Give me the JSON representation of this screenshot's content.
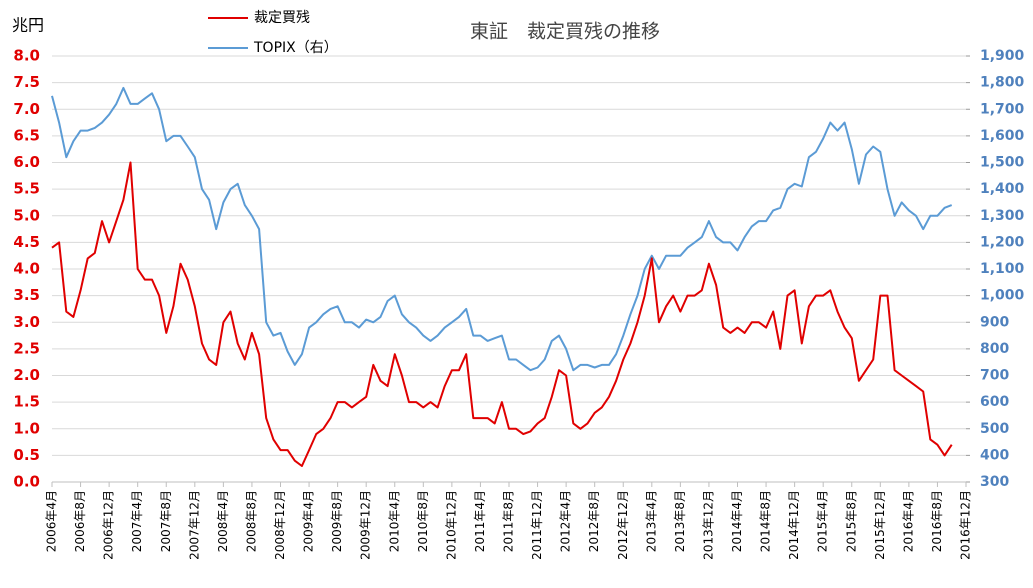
{
  "chart_data": {
    "type": "line",
    "title": "東証　裁定買残の推移",
    "ylabel": "兆円",
    "categories": [
      "2006年4月",
      null,
      null,
      null,
      "2006年8月",
      null,
      null,
      null,
      "2006年12月",
      null,
      null,
      null,
      "2007年4月",
      null,
      null,
      null,
      "2007年8月",
      null,
      null,
      null,
      "2007年12月",
      null,
      null,
      null,
      "2008年4月",
      null,
      null,
      null,
      "2008年8月",
      null,
      null,
      null,
      "2008年12月",
      null,
      null,
      null,
      "2009年4月",
      null,
      null,
      null,
      "2009年8月",
      null,
      null,
      null,
      "2009年12月",
      null,
      null,
      null,
      "2010年4月",
      null,
      null,
      null,
      "2010年8月",
      null,
      null,
      null,
      "2010年12月",
      null,
      null,
      null,
      "2011年4月",
      null,
      null,
      null,
      "2011年8月",
      null,
      null,
      null,
      "2011年12月",
      null,
      null,
      null,
      "2012年4月",
      null,
      null,
      null,
      "2012年8月",
      null,
      null,
      null,
      "2012年12月",
      null,
      null,
      null,
      "2013年4月",
      null,
      null,
      null,
      "2013年8月",
      null,
      null,
      null,
      "2013年12月",
      null,
      null,
      null,
      "2014年4月",
      null,
      null,
      null,
      "2014年8月",
      null,
      null,
      null,
      "2014年12月",
      null,
      null,
      null,
      "2015年4月",
      null,
      null,
      null,
      "2015年8月",
      null,
      null,
      null,
      "2015年12月",
      null,
      null,
      null,
      "2016年4月",
      null,
      null,
      null,
      "2016年8月",
      null,
      null,
      null,
      "2016年12月"
    ],
    "series": [
      {
        "name": "裁定買残",
        "color": "#e00000",
        "axis": "y",
        "values": [
          4.4,
          4.5,
          3.2,
          3.1,
          3.6,
          4.2,
          4.3,
          4.9,
          4.5,
          4.9,
          5.3,
          6.0,
          4.0,
          3.8,
          3.8,
          3.5,
          2.8,
          3.3,
          4.1,
          3.8,
          3.3,
          2.6,
          2.3,
          2.2,
          3.0,
          3.2,
          2.6,
          2.3,
          2.8,
          2.4,
          1.2,
          0.8,
          0.6,
          0.6,
          0.4,
          0.3,
          0.6,
          0.9,
          1.0,
          1.2,
          1.5,
          1.5,
          1.4,
          1.5,
          1.6,
          2.2,
          1.9,
          1.8,
          2.4,
          2.0,
          1.5,
          1.5,
          1.4,
          1.5,
          1.4,
          1.8,
          2.1,
          2.1,
          2.4,
          1.2,
          1.2,
          1.2,
          1.1,
          1.5,
          1.0,
          1.0,
          0.9,
          0.95,
          1.1,
          1.2,
          1.6,
          2.1,
          2.0,
          1.1,
          1.0,
          1.1,
          1.3,
          1.4,
          1.6,
          1.9,
          2.3,
          2.6,
          3.0,
          3.5,
          4.2,
          3.0,
          3.3,
          3.5,
          3.2,
          3.5,
          3.5,
          3.6,
          4.1,
          3.7,
          2.9,
          2.8,
          2.9,
          2.8,
          3.0,
          3.0,
          2.9,
          3.2,
          2.5,
          3.5,
          3.6,
          2.6,
          3.3,
          3.5,
          3.5,
          3.6,
          3.2,
          2.9,
          2.7,
          1.9,
          2.1,
          2.3,
          3.5,
          3.5,
          2.1,
          2.0,
          1.9,
          1.8,
          1.7,
          0.8,
          0.7,
          0.5,
          0.7,
          null,
          null
        ]
      },
      {
        "name": "TOPIX（右）",
        "color": "#5b9bd5",
        "axis": "y2",
        "values": [
          1750,
          1650,
          1520,
          1580,
          1620,
          1620,
          1630,
          1650,
          1680,
          1720,
          1780,
          1720,
          1720,
          1740,
          1760,
          1700,
          1580,
          1600,
          1600,
          1560,
          1520,
          1400,
          1360,
          1250,
          1350,
          1400,
          1420,
          1340,
          1300,
          1250,
          900,
          850,
          860,
          790,
          740,
          780,
          880,
          900,
          930,
          950,
          960,
          900,
          900,
          880,
          910,
          900,
          920,
          980,
          1000,
          930,
          900,
          880,
          850,
          830,
          850,
          880,
          900,
          920,
          950,
          850,
          850,
          830,
          840,
          850,
          760,
          760,
          740,
          720,
          730,
          760,
          830,
          850,
          800,
          720,
          740,
          740,
          730,
          740,
          740,
          780,
          850,
          930,
          1000,
          1100,
          1150,
          1100,
          1150,
          1150,
          1150,
          1180,
          1200,
          1220,
          1280,
          1220,
          1200,
          1200,
          1170,
          1220,
          1260,
          1280,
          1280,
          1320,
          1330,
          1400,
          1420,
          1410,
          1520,
          1540,
          1590,
          1650,
          1620,
          1650,
          1550,
          1420,
          1530,
          1560,
          1540,
          1400,
          1300,
          1350,
          1320,
          1300,
          1250,
          1300,
          1300,
          1330,
          1340,
          null,
          null
        ]
      }
    ],
    "ylim": [
      0,
      8
    ],
    "yticks": [
      {
        "value": 0,
        "label": "0.0"
      },
      {
        "value": 0.5,
        "label": "0.5"
      },
      {
        "value": 1,
        "label": "1.0"
      },
      {
        "value": 1.5,
        "label": "1.5"
      },
      {
        "value": 2,
        "label": "2.0"
      },
      {
        "value": 2.5,
        "label": "2.5"
      },
      {
        "value": 3,
        "label": "3.0"
      },
      {
        "value": 3.5,
        "label": "3.5"
      },
      {
        "value": 4,
        "label": "4.0"
      },
      {
        "value": 4.5,
        "label": "4.5"
      },
      {
        "value": 5,
        "label": "5.0"
      },
      {
        "value": 5.5,
        "label": "5.5"
      },
      {
        "value": 6,
        "label": "6.0"
      },
      {
        "value": 6.5,
        "label": "6.5"
      },
      {
        "value": 7,
        "label": "7.0"
      },
      {
        "value": 7.5,
        "label": "7.5"
      },
      {
        "value": 8,
        "label": "8.0"
      }
    ],
    "y2lim": [
      300,
      1900
    ],
    "y2ticks": [
      300,
      400,
      500,
      600,
      700,
      800,
      900,
      {
        "value": 1000,
        "label": "1,000"
      },
      {
        "value": 1100,
        "label": "1,100"
      },
      {
        "value": 1200,
        "label": "1,200"
      },
      {
        "value": 1300,
        "label": "1,300"
      },
      {
        "value": 1400,
        "label": "1,400"
      },
      {
        "value": 1500,
        "label": "1,500"
      },
      {
        "value": 1600,
        "label": "1,600"
      },
      {
        "value": 1700,
        "label": "1,700"
      },
      {
        "value": 1800,
        "label": "1,800"
      },
      {
        "value": 1900,
        "label": "1,900"
      }
    ],
    "grid": true
  }
}
